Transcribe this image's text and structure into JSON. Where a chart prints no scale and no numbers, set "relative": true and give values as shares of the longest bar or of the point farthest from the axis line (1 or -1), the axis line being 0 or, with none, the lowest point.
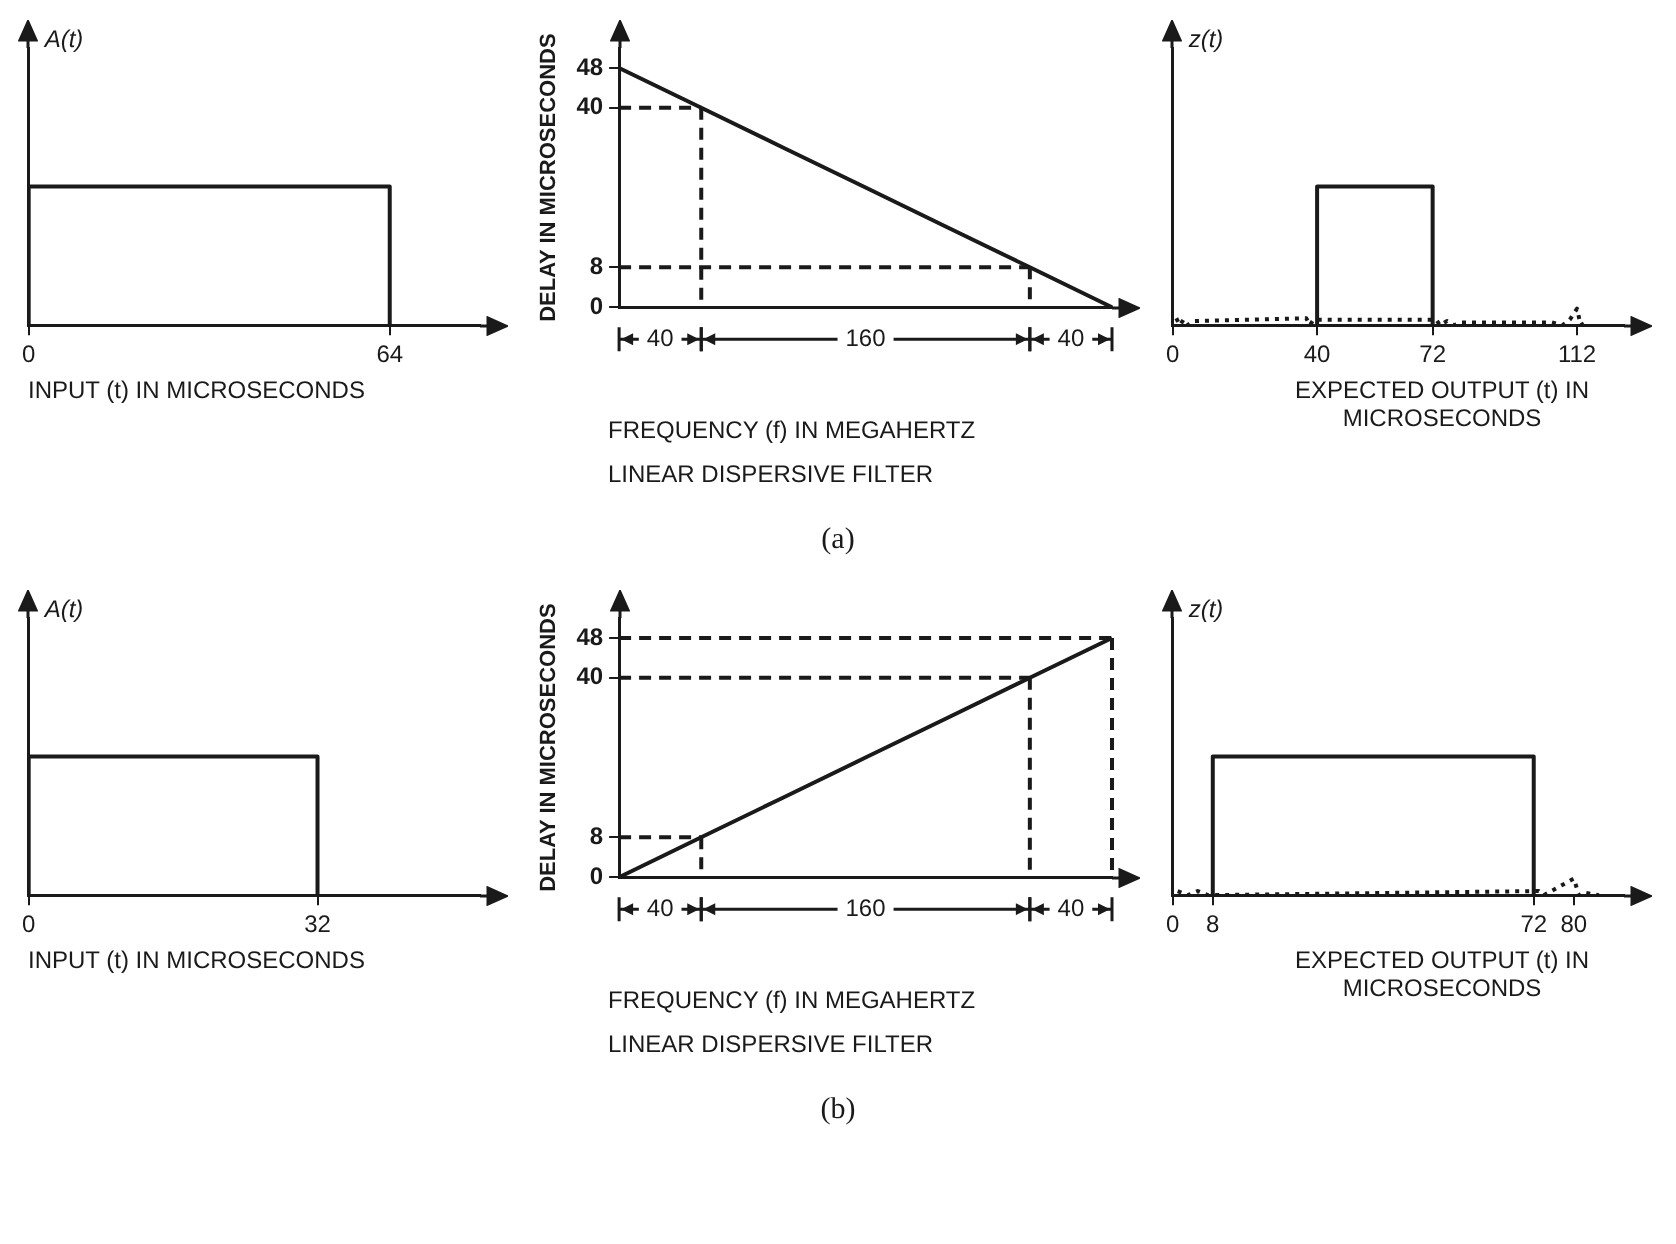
{
  "chart_data": [
    {
      "type": "line",
      "ylabel": "A(t)",
      "xlabel": "INPUT (t) IN MICROSECONDS",
      "relative": true,
      "xlim": [
        0,
        80
      ],
      "xticks": [
        0,
        64
      ],
      "marker": "none",
      "series": [
        {
          "color": "#1a1a1a",
          "x": [
            0,
            0,
            64,
            64
          ],
          "values": [
            0,
            1,
            1,
            0
          ]
        }
      ]
    },
    {
      "type": "line",
      "ylabel": "DELAY IN MICROSECONDS",
      "xlabel": "FREQUENCY (f) IN MEGAHERTZ",
      "categories": [
        null,
        null,
        null,
        null,
        null,
        null,
        null
      ],
      "ylim": [
        0,
        52
      ],
      "yticks": [
        0,
        8,
        40,
        48
      ],
      "marker": "none",
      "annotations": [
        "40",
        "160",
        "40",
        "LINEAR DISPERSIVE FILTER",
        "(a)"
      ],
      "series": [
        {
          "color": "#1a1a1a",
          "values": [
            48,
            40,
            32,
            24,
            16,
            8,
            0
          ]
        },
        {
          "color": "#1a1a1a",
          "line_style": "dashed",
          "values": [
            40,
            40,
            null,
            null,
            null,
            null,
            null
          ]
        },
        {
          "color": "#1a1a1a",
          "line_style": "dashed",
          "values": [
            8,
            8,
            8,
            8,
            8,
            8,
            null
          ]
        }
      ]
    },
    {
      "type": "line",
      "ylabel": "z(t)",
      "xlabel": "EXPECTED OUTPUT (t) IN MICROSECONDS",
      "relative": true,
      "xlim": [
        0,
        125
      ],
      "xticks": [
        0,
        40,
        72,
        112
      ],
      "marker": "none",
      "series": [
        {
          "color": "#1a1a1a",
          "x": [
            40,
            40,
            72,
            72
          ],
          "values": [
            0,
            1,
            1,
            0
          ]
        },
        {
          "color": "#1a1a1a",
          "line_style": "dotted",
          "x": [
            1,
            2,
            3,
            4,
            6,
            37,
            38,
            39,
            73,
            74,
            76,
            78,
            80,
            105,
            108,
            110,
            112,
            113,
            115
          ],
          "values": [
            0.05,
            0,
            0.04,
            0,
            0.03,
            0.05,
            0,
            0.04,
            0.04,
            0,
            0.03,
            0,
            0.02,
            0.02,
            0,
            0.04,
            0.12,
            0,
            0.03
          ]
        }
      ]
    },
    {
      "type": "line",
      "ylabel": "A(t)",
      "xlabel": "INPUT (t) IN MICROSECONDS",
      "relative": true,
      "xlim": [
        0,
        50
      ],
      "xticks": [
        0,
        32
      ],
      "marker": "none",
      "series": [
        {
          "color": "#1a1a1a",
          "x": [
            0,
            0,
            32,
            32
          ],
          "values": [
            0,
            1,
            1,
            0
          ]
        }
      ]
    },
    {
      "type": "line",
      "ylabel": "DELAY IN MICROSECONDS",
      "xlabel": "FREQUENCY (f) IN MEGAHERTZ",
      "categories": [
        null,
        null,
        null,
        null,
        null,
        null,
        null
      ],
      "ylim": [
        0,
        52
      ],
      "yticks": [
        0,
        8,
        40,
        48
      ],
      "marker": "none",
      "annotations": [
        "40",
        "160",
        "40",
        "LINEAR DISPERSIVE FILTER",
        "(b)"
      ],
      "series": [
        {
          "color": "#1a1a1a",
          "values": [
            0,
            8,
            16,
            24,
            32,
            40,
            48
          ]
        },
        {
          "color": "#1a1a1a",
          "line_style": "dashed",
          "values": [
            8,
            8,
            null,
            null,
            null,
            null,
            null
          ]
        },
        {
          "color": "#1a1a1a",
          "line_style": "dashed",
          "values": [
            40,
            40,
            40,
            40,
            40,
            40,
            null
          ]
        },
        {
          "color": "#1a1a1a",
          "line_style": "dashed",
          "values": [
            48,
            48,
            48,
            48,
            48,
            48,
            48
          ]
        }
      ]
    },
    {
      "type": "line",
      "ylabel": "z(t)",
      "xlabel": "EXPECTED OUTPUT (t) IN MICROSECONDS",
      "relative": true,
      "xlim": [
        0,
        90
      ],
      "xticks": [
        0,
        8,
        72,
        80
      ],
      "marker": "none",
      "series": [
        {
          "color": "#1a1a1a",
          "x": [
            8,
            8,
            72,
            72
          ],
          "values": [
            0,
            1,
            1,
            0
          ]
        },
        {
          "color": "#1a1a1a",
          "line_style": "dotted",
          "x": [
            1,
            3,
            5,
            7,
            73,
            74,
            80,
            81,
            82,
            85
          ],
          "values": [
            0.03,
            0,
            0.03,
            0,
            0.03,
            0,
            0.12,
            0,
            0.02,
            0
          ]
        }
      ]
    }
  ]
}
